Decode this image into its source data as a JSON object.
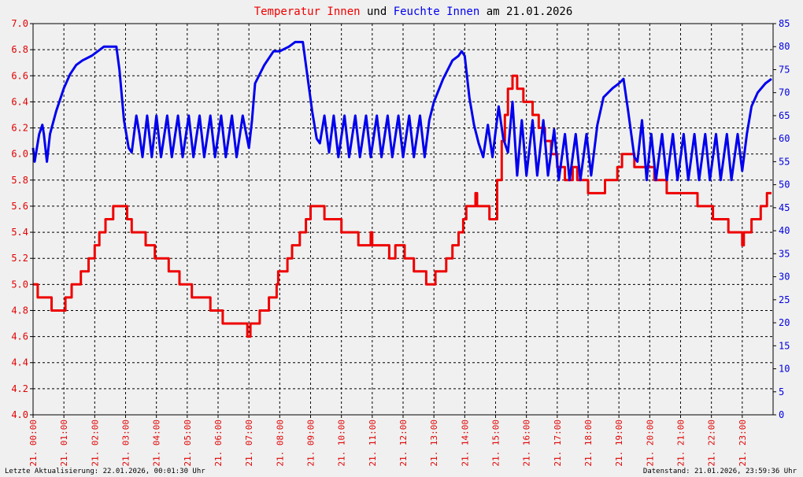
{
  "chart_data": {
    "type": "line",
    "title_parts": [
      {
        "text": "Temperatur Innen",
        "color": "#ee0000"
      },
      {
        "text": " und ",
        "color": "#000000"
      },
      {
        "text": "Feuchte Innen",
        "color": "#0000ee"
      },
      {
        "text": " am 21.01.2026",
        "color": "#000000"
      }
    ],
    "x_range_hours": [
      0,
      24
    ],
    "x_ticks": [
      "21. 00:00",
      "21. 01:00",
      "21. 02:00",
      "21. 03:00",
      "21. 04:00",
      "21. 05:00",
      "21. 06:00",
      "21. 07:00",
      "21. 08:00",
      "21. 09:00",
      "21. 10:00",
      "21. 11:00",
      "21. 12:00",
      "21. 13:00",
      "21. 14:00",
      "21. 15:00",
      "21. 16:00",
      "21. 17:00",
      "21. 18:00",
      "21. 19:00",
      "21. 20:00",
      "21. 21:00",
      "21. 22:00",
      "21. 23:00"
    ],
    "y_left": {
      "range": [
        4.0,
        7.0
      ],
      "ticks": [
        "4.0",
        "4.2",
        "4.4",
        "4.6",
        "4.8",
        "5.0",
        "5.2",
        "5.4",
        "5.6",
        "5.8",
        "6.0",
        "6.2",
        "6.4",
        "6.6",
        "6.8",
        "7.0"
      ],
      "color": "#ee0000"
    },
    "y_right": {
      "range": [
        0,
        85
      ],
      "ticks": [
        "0",
        "5",
        "10",
        "15",
        "20",
        "25",
        "30",
        "35",
        "40",
        "45",
        "50",
        "55",
        "60",
        "65",
        "70",
        "75",
        "80",
        "85"
      ],
      "color": "#0000ee"
    },
    "grid": true,
    "series": [
      {
        "name": "Temperatur Innen",
        "axis": "left",
        "color": "#ee0000",
        "points": [
          [
            0,
            5.0
          ],
          [
            0.15,
            4.9
          ],
          [
            0.55,
            4.9
          ],
          [
            0.6,
            4.8
          ],
          [
            0.9,
            4.8
          ],
          [
            1.05,
            4.9
          ],
          [
            1.2,
            4.9
          ],
          [
            1.25,
            5.0
          ],
          [
            1.5,
            5.0
          ],
          [
            1.55,
            5.1
          ],
          [
            1.75,
            5.1
          ],
          [
            1.8,
            5.2
          ],
          [
            1.95,
            5.2
          ],
          [
            2.0,
            5.3
          ],
          [
            2.1,
            5.3
          ],
          [
            2.15,
            5.4
          ],
          [
            2.3,
            5.4
          ],
          [
            2.35,
            5.5
          ],
          [
            2.55,
            5.5
          ],
          [
            2.6,
            5.6
          ],
          [
            2.95,
            5.6
          ],
          [
            3.05,
            5.5
          ],
          [
            3.15,
            5.5
          ],
          [
            3.2,
            5.4
          ],
          [
            3.6,
            5.4
          ],
          [
            3.65,
            5.3
          ],
          [
            3.9,
            5.3
          ],
          [
            3.95,
            5.2
          ],
          [
            4.35,
            5.2
          ],
          [
            4.4,
            5.1
          ],
          [
            4.7,
            5.1
          ],
          [
            4.75,
            5.0
          ],
          [
            5.1,
            5.0
          ],
          [
            5.15,
            4.9
          ],
          [
            5.7,
            4.9
          ],
          [
            5.75,
            4.8
          ],
          [
            6.1,
            4.8
          ],
          [
            6.15,
            4.7
          ],
          [
            6.9,
            4.7
          ],
          [
            6.95,
            4.6
          ],
          [
            7.05,
            4.7
          ],
          [
            7.3,
            4.7
          ],
          [
            7.35,
            4.8
          ],
          [
            7.6,
            4.8
          ],
          [
            7.65,
            4.9
          ],
          [
            7.85,
            4.9
          ],
          [
            7.9,
            5.0
          ],
          [
            7.95,
            5.1
          ],
          [
            8.2,
            5.1
          ],
          [
            8.25,
            5.2
          ],
          [
            8.35,
            5.2
          ],
          [
            8.4,
            5.3
          ],
          [
            8.6,
            5.3
          ],
          [
            8.65,
            5.4
          ],
          [
            8.8,
            5.4
          ],
          [
            8.85,
            5.5
          ],
          [
            8.95,
            5.5
          ],
          [
            9.0,
            5.6
          ],
          [
            9.4,
            5.6
          ],
          [
            9.45,
            5.5
          ],
          [
            9.95,
            5.5
          ],
          [
            10.0,
            5.4
          ],
          [
            10.5,
            5.4
          ],
          [
            10.55,
            5.3
          ],
          [
            10.9,
            5.3
          ],
          [
            10.95,
            5.4
          ],
          [
            11.0,
            5.3
          ],
          [
            11.5,
            5.3
          ],
          [
            11.55,
            5.2
          ],
          [
            11.7,
            5.2
          ],
          [
            11.75,
            5.3
          ],
          [
            12.0,
            5.3
          ],
          [
            12.05,
            5.2
          ],
          [
            12.3,
            5.2
          ],
          [
            12.35,
            5.1
          ],
          [
            12.7,
            5.1
          ],
          [
            12.75,
            5.0
          ],
          [
            13.0,
            5.0
          ],
          [
            13.05,
            5.1
          ],
          [
            13.35,
            5.1
          ],
          [
            13.4,
            5.2
          ],
          [
            13.55,
            5.2
          ],
          [
            13.6,
            5.3
          ],
          [
            13.75,
            5.3
          ],
          [
            13.8,
            5.4
          ],
          [
            13.9,
            5.4
          ],
          [
            13.95,
            5.5
          ],
          [
            14.0,
            5.5
          ],
          [
            14.05,
            5.6
          ],
          [
            14.3,
            5.6
          ],
          [
            14.35,
            5.7
          ],
          [
            14.4,
            5.6
          ],
          [
            14.75,
            5.6
          ],
          [
            14.8,
            5.5
          ],
          [
            15.0,
            5.5
          ],
          [
            15.05,
            5.8
          ],
          [
            15.2,
            6.1
          ],
          [
            15.3,
            6.3
          ],
          [
            15.4,
            6.5
          ],
          [
            15.5,
            6.5
          ],
          [
            15.55,
            6.6
          ],
          [
            15.65,
            6.6
          ],
          [
            15.7,
            6.5
          ],
          [
            15.85,
            6.5
          ],
          [
            15.9,
            6.4
          ],
          [
            16.15,
            6.4
          ],
          [
            16.2,
            6.3
          ],
          [
            16.35,
            6.3
          ],
          [
            16.4,
            6.2
          ],
          [
            16.55,
            6.2
          ],
          [
            16.6,
            6.1
          ],
          [
            16.75,
            6.1
          ],
          [
            16.8,
            6.0
          ],
          [
            16.95,
            6.0
          ],
          [
            17.0,
            5.9
          ],
          [
            17.2,
            5.9
          ],
          [
            17.25,
            5.8
          ],
          [
            17.45,
            5.8
          ],
          [
            17.5,
            5.9
          ],
          [
            17.6,
            5.9
          ],
          [
            17.65,
            5.8
          ],
          [
            17.95,
            5.8
          ],
          [
            18.0,
            5.7
          ],
          [
            18.5,
            5.7
          ],
          [
            18.55,
            5.8
          ],
          [
            18.9,
            5.8
          ],
          [
            18.95,
            5.9
          ],
          [
            19.05,
            5.9
          ],
          [
            19.1,
            6.0
          ],
          [
            19.45,
            6.0
          ],
          [
            19.5,
            5.9
          ],
          [
            20.1,
            5.9
          ],
          [
            20.15,
            5.8
          ],
          [
            20.5,
            5.8
          ],
          [
            20.55,
            5.7
          ],
          [
            21.5,
            5.7
          ],
          [
            21.55,
            5.6
          ],
          [
            22.0,
            5.6
          ],
          [
            22.05,
            5.5
          ],
          [
            22.5,
            5.5
          ],
          [
            22.55,
            5.4
          ],
          [
            22.95,
            5.4
          ],
          [
            23.0,
            5.3
          ],
          [
            23.05,
            5.4
          ],
          [
            23.25,
            5.4
          ],
          [
            23.3,
            5.5
          ],
          [
            23.55,
            5.5
          ],
          [
            23.6,
            5.6
          ],
          [
            23.75,
            5.6
          ],
          [
            23.8,
            5.7
          ],
          [
            23.95,
            5.7
          ]
        ]
      },
      {
        "name": "Feuchte Innen",
        "axis": "right",
        "color": "#0000ee",
        "points": [
          [
            0,
            58
          ],
          [
            0.05,
            55
          ],
          [
            0.2,
            61
          ],
          [
            0.3,
            63
          ],
          [
            0.35,
            61
          ],
          [
            0.45,
            55
          ],
          [
            0.55,
            61
          ],
          [
            0.75,
            66
          ],
          [
            1.0,
            71
          ],
          [
            1.2,
            74
          ],
          [
            1.4,
            76
          ],
          [
            1.6,
            77
          ],
          [
            1.9,
            78
          ],
          [
            2.1,
            79
          ],
          [
            2.3,
            80
          ],
          [
            2.7,
            80
          ],
          [
            2.8,
            75
          ],
          [
            2.95,
            64
          ],
          [
            3.1,
            58
          ],
          [
            3.2,
            57
          ],
          [
            3.35,
            65
          ],
          [
            3.45,
            61
          ],
          [
            3.55,
            56
          ],
          [
            3.7,
            65
          ],
          [
            3.85,
            56
          ],
          [
            4.0,
            65
          ],
          [
            4.15,
            56
          ],
          [
            4.35,
            65
          ],
          [
            4.5,
            56
          ],
          [
            4.7,
            65
          ],
          [
            4.85,
            56
          ],
          [
            5.05,
            65
          ],
          [
            5.2,
            56
          ],
          [
            5.4,
            65
          ],
          [
            5.55,
            56
          ],
          [
            5.75,
            65
          ],
          [
            5.9,
            56
          ],
          [
            6.1,
            65
          ],
          [
            6.25,
            56
          ],
          [
            6.45,
            65
          ],
          [
            6.6,
            56
          ],
          [
            6.8,
            65
          ],
          [
            7.0,
            58
          ],
          [
            7.1,
            64
          ],
          [
            7.2,
            72
          ],
          [
            7.5,
            76
          ],
          [
            7.8,
            79
          ],
          [
            8.0,
            79
          ],
          [
            8.3,
            80
          ],
          [
            8.5,
            81
          ],
          [
            8.75,
            81
          ],
          [
            8.85,
            76
          ],
          [
            9.05,
            66
          ],
          [
            9.2,
            60
          ],
          [
            9.3,
            59
          ],
          [
            9.45,
            65
          ],
          [
            9.6,
            57
          ],
          [
            9.75,
            65
          ],
          [
            9.9,
            56
          ],
          [
            10.1,
            65
          ],
          [
            10.25,
            56
          ],
          [
            10.45,
            65
          ],
          [
            10.6,
            56
          ],
          [
            10.8,
            65
          ],
          [
            10.95,
            56
          ],
          [
            11.15,
            65
          ],
          [
            11.3,
            56
          ],
          [
            11.5,
            65
          ],
          [
            11.65,
            56
          ],
          [
            11.85,
            65
          ],
          [
            12.0,
            56
          ],
          [
            12.2,
            65
          ],
          [
            12.35,
            56
          ],
          [
            12.55,
            65
          ],
          [
            12.7,
            56
          ],
          [
            12.85,
            64
          ],
          [
            13.0,
            68
          ],
          [
            13.3,
            73
          ],
          [
            13.6,
            77
          ],
          [
            13.8,
            78
          ],
          [
            13.9,
            79
          ],
          [
            14.0,
            78
          ],
          [
            14.15,
            69
          ],
          [
            14.3,
            63
          ],
          [
            14.45,
            59
          ],
          [
            14.6,
            56
          ],
          [
            14.75,
            63
          ],
          [
            14.9,
            56
          ],
          [
            15.1,
            67
          ],
          [
            15.25,
            60
          ],
          [
            15.4,
            57
          ],
          [
            15.55,
            68
          ],
          [
            15.7,
            52
          ],
          [
            15.85,
            64
          ],
          [
            16.0,
            52
          ],
          [
            16.2,
            64
          ],
          [
            16.35,
            52
          ],
          [
            16.55,
            64
          ],
          [
            16.7,
            52
          ],
          [
            16.9,
            62
          ],
          [
            17.05,
            51
          ],
          [
            17.25,
            61
          ],
          [
            17.4,
            51
          ],
          [
            17.6,
            61
          ],
          [
            17.75,
            51
          ],
          [
            17.95,
            61
          ],
          [
            18.1,
            52
          ],
          [
            18.3,
            63
          ],
          [
            18.5,
            69
          ],
          [
            18.8,
            71
          ],
          [
            19.0,
            72
          ],
          [
            19.15,
            73
          ],
          [
            19.3,
            66
          ],
          [
            19.5,
            56
          ],
          [
            19.6,
            55
          ],
          [
            19.75,
            64
          ],
          [
            19.9,
            51
          ],
          [
            20.05,
            61
          ],
          [
            20.2,
            51
          ],
          [
            20.4,
            61
          ],
          [
            20.55,
            51
          ],
          [
            20.75,
            61
          ],
          [
            20.9,
            51
          ],
          [
            21.1,
            61
          ],
          [
            21.25,
            51
          ],
          [
            21.45,
            61
          ],
          [
            21.6,
            51
          ],
          [
            21.8,
            61
          ],
          [
            21.95,
            51
          ],
          [
            22.15,
            61
          ],
          [
            22.3,
            51
          ],
          [
            22.5,
            61
          ],
          [
            22.65,
            51
          ],
          [
            22.85,
            61
          ],
          [
            23.0,
            53
          ],
          [
            23.15,
            61
          ],
          [
            23.3,
            67
          ],
          [
            23.5,
            70
          ],
          [
            23.75,
            72
          ],
          [
            23.95,
            73
          ]
        ]
      }
    ]
  },
  "footer": {
    "left": "Letzte Aktualisierung: 22.01.2026, 00:01:30 Uhr",
    "right": "Datenstand: 21.01.2026, 23:59:36 Uhr"
  }
}
